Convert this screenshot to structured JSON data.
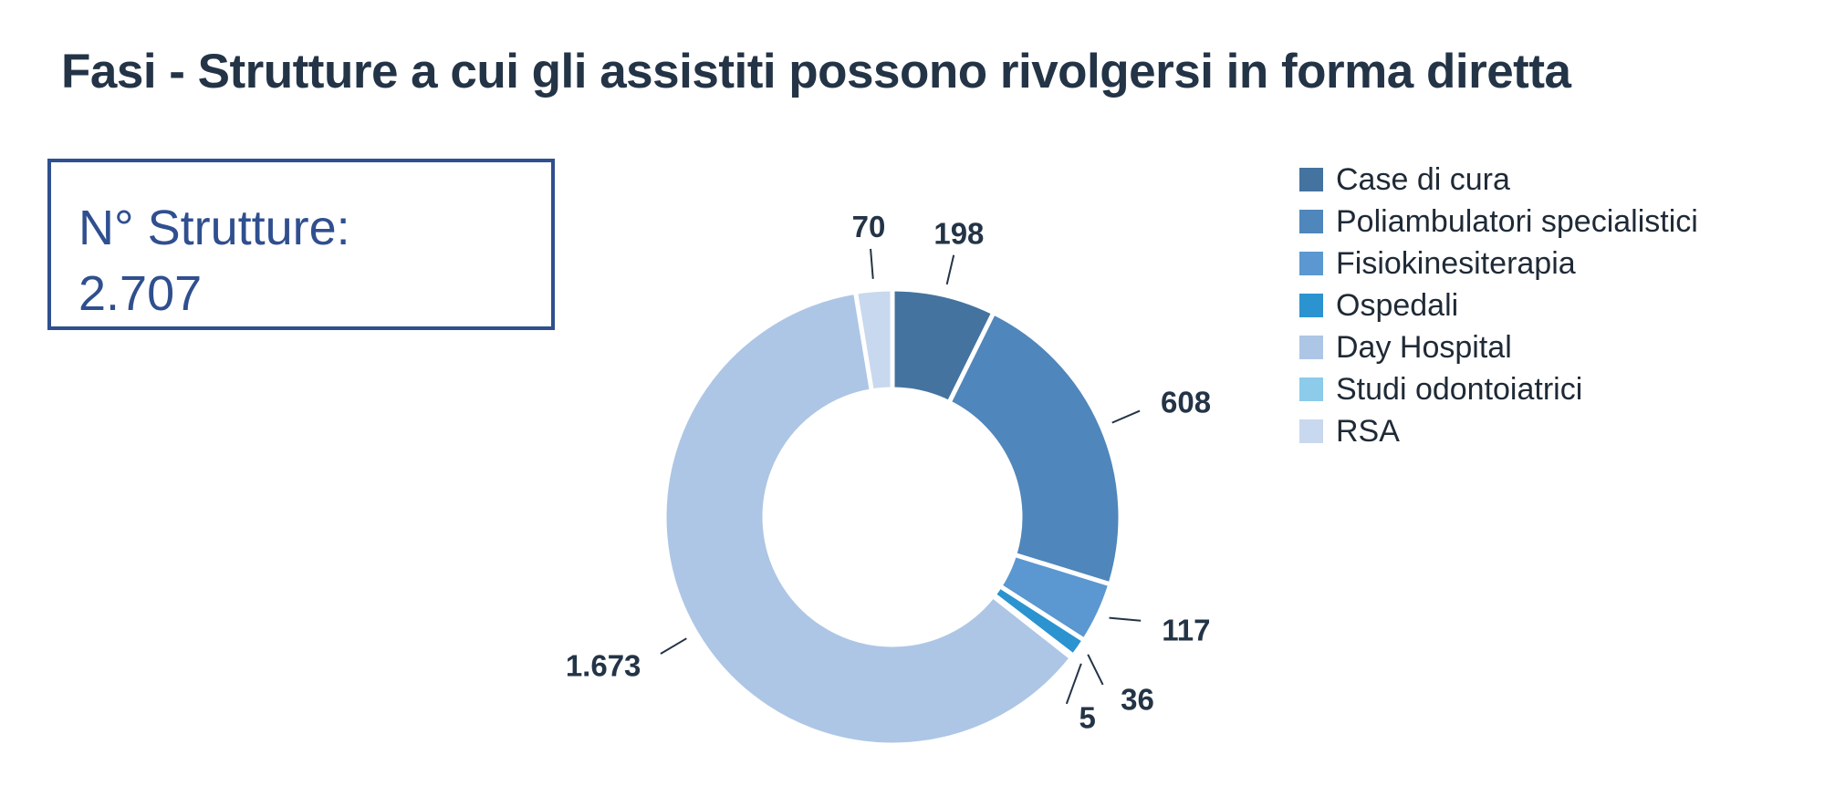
{
  "chart_data": {
    "type": "pie",
    "variant": "donut",
    "title": "Fasi - Strutture a cui gli assistiti possono rivolgersi in forma diretta",
    "total_label": "N° Strutture:",
    "total_value": "2.707",
    "categories": [
      "Case di cura",
      "Poliambulatori specialistici",
      "Fisiokinesiterapia",
      "Ospedali",
      "Day Hospital",
      "Studi odontoiatrici",
      "RSA"
    ],
    "values": [
      198,
      608,
      117,
      36,
      1673,
      5,
      70
    ],
    "data_labels": [
      "198",
      "608",
      "117",
      "36",
      "1.673",
      "5",
      "70"
    ],
    "slice_order": [
      0,
      1,
      2,
      3,
      5,
      4,
      6
    ],
    "colors": [
      "#44739f",
      "#4f86bb",
      "#5b97d1",
      "#2b93cf",
      "#adc6e5",
      "#8ccbea",
      "#c8d8ee"
    ],
    "legend_position": "right"
  }
}
